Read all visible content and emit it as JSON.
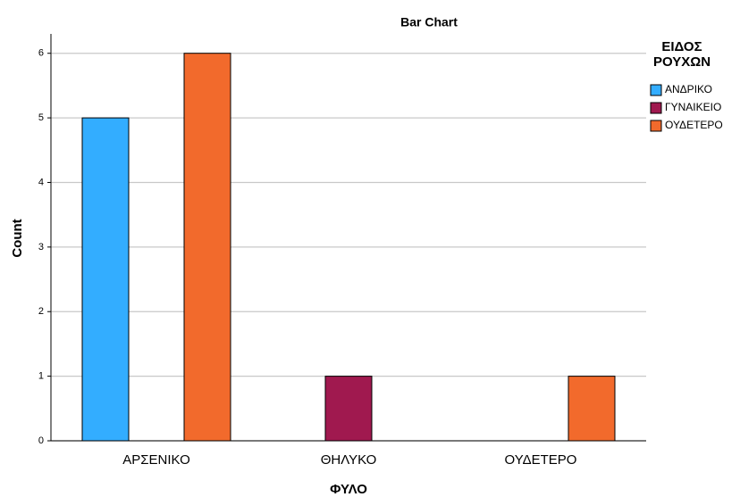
{
  "chart_data": {
    "type": "bar",
    "title": "Bar Chart",
    "x_label": "ΦΥΛΟ",
    "y_label": "Count",
    "legend_title": "ΕΙΔΟΣ ΡΟΥΧΩΝ",
    "categories": [
      "ΑΡΣΕΝΙΚΟ",
      "ΘΗΛΥΚΟ",
      "ΟΥΔΕΤΕΡΟ"
    ],
    "series": [
      {
        "name": "ΑΝΔΡΙΚΟ",
        "color": "#33adff",
        "values": [
          5,
          null,
          null
        ]
      },
      {
        "name": "ΓΥΝΑΙΚΕΙΟ",
        "color": "#a0194f",
        "values": [
          null,
          1,
          null
        ]
      },
      {
        "name": "ΟΥΔΕΤΕΡΟ",
        "color": "#f26a2c",
        "values": [
          6,
          null,
          1
        ]
      }
    ],
    "ylim": [
      0,
      6.3
    ],
    "yticks": [
      0,
      1,
      2,
      3,
      4,
      5,
      6
    ],
    "grid": true,
    "legend": "right"
  }
}
